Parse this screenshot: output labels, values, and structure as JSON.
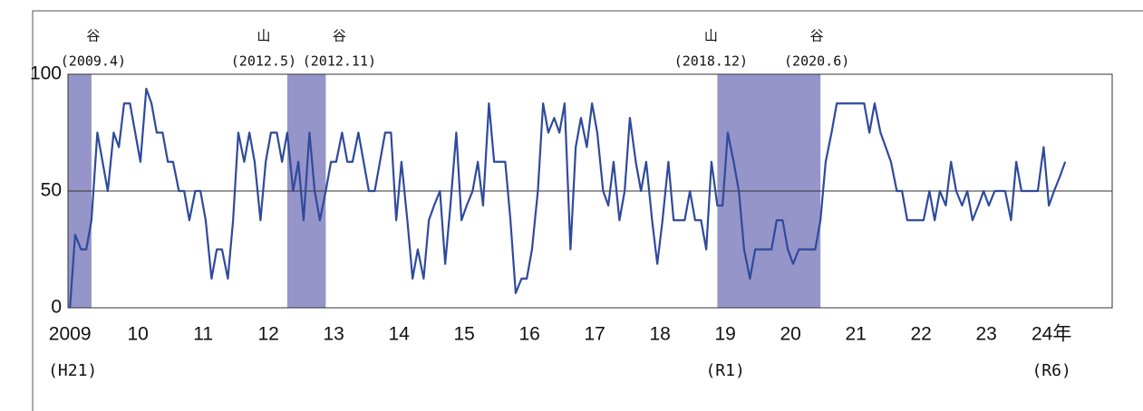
{
  "chart_data": {
    "type": "line",
    "x": [
      2009,
      2009.08,
      2009.17,
      2009.25,
      2009.33,
      2009.42,
      2009.5,
      2009.58,
      2009.67,
      2009.75,
      2009.83,
      2009.92,
      2010,
      2010.08,
      2010.17,
      2010.25,
      2010.33,
      2010.42,
      2010.5,
      2010.58,
      2010.67,
      2010.75,
      2010.83,
      2010.92,
      2011,
      2011.08,
      2011.17,
      2011.25,
      2011.33,
      2011.42,
      2011.5,
      2011.58,
      2011.67,
      2011.75,
      2011.83,
      2011.92,
      2012,
      2012.08,
      2012.17,
      2012.25,
      2012.33,
      2012.42,
      2012.5,
      2012.58,
      2012.67,
      2012.75,
      2012.83,
      2012.92,
      2013,
      2013.08,
      2013.17,
      2013.25,
      2013.33,
      2013.42,
      2013.5,
      2013.58,
      2013.67,
      2013.75,
      2013.83,
      2013.92,
      2014,
      2014.08,
      2014.17,
      2014.25,
      2014.33,
      2014.42,
      2014.5,
      2014.58,
      2014.67,
      2014.75,
      2014.83,
      2014.92,
      2015,
      2015.08,
      2015.17,
      2015.25,
      2015.33,
      2015.42,
      2015.5,
      2015.58,
      2015.67,
      2015.75,
      2015.83,
      2015.92,
      2016,
      2016.08,
      2016.17,
      2016.25,
      2016.33,
      2016.42,
      2016.5,
      2016.58,
      2016.67,
      2016.75,
      2016.83,
      2016.92,
      2017,
      2017.08,
      2017.17,
      2017.25,
      2017.33,
      2017.42,
      2017.5,
      2017.58,
      2017.67,
      2017.75,
      2017.83,
      2017.92,
      2018,
      2018.08,
      2018.17,
      2018.25,
      2018.33,
      2018.42,
      2018.5,
      2018.58,
      2018.67,
      2018.75,
      2018.83,
      2018.92,
      2019,
      2019.08,
      2019.17,
      2019.25,
      2019.33,
      2019.42,
      2019.5,
      2019.58,
      2019.67,
      2019.75,
      2019.83,
      2019.92,
      2020,
      2020.08,
      2020.17,
      2020.25,
      2020.33,
      2020.42,
      2020.5,
      2020.58,
      2020.67,
      2020.75,
      2020.83,
      2020.92,
      2021,
      2021.08,
      2021.17,
      2021.25,
      2021.33,
      2021.42,
      2021.5,
      2021.58,
      2021.67,
      2021.75,
      2021.83,
      2021.92,
      2022,
      2022.08,
      2022.17,
      2022.25,
      2022.33,
      2022.42,
      2022.5,
      2022.58,
      2022.67,
      2022.75,
      2022.83,
      2022.92,
      2023,
      2023.08,
      2023.17,
      2023.25,
      2023.33,
      2023.42,
      2023.5,
      2023.58,
      2023.67,
      2023.75,
      2023.83,
      2023.92,
      2024,
      2024.08,
      2024.17,
      2024.25
    ],
    "values": [
      0,
      31.3,
      25,
      25,
      37.5,
      75,
      62.5,
      50,
      75,
      68.8,
      87.5,
      87.5,
      75,
      62.5,
      93.8,
      87.5,
      75,
      75,
      62.5,
      62.5,
      50,
      50,
      37.5,
      50,
      50,
      37.5,
      12.5,
      25,
      25,
      12.5,
      37.5,
      75,
      62.5,
      75,
      62.5,
      37.5,
      62.5,
      75,
      75,
      62.5,
      75,
      50,
      62.5,
      37.5,
      75,
      50,
      37.5,
      50,
      62.5,
      62.5,
      75,
      62.5,
      62.5,
      75,
      62.5,
      50,
      50,
      62.5,
      75,
      75,
      37.5,
      62.5,
      37.5,
      12.5,
      25,
      12.5,
      37.5,
      43.8,
      50,
      18.8,
      43.8,
      75,
      37.5,
      43.8,
      50,
      62.5,
      43.8,
      87.5,
      62.5,
      62.5,
      62.5,
      37.5,
      6.3,
      12.5,
      12.5,
      25,
      50,
      87.5,
      75,
      81.3,
      75,
      87.5,
      25,
      68.8,
      81.3,
      68.8,
      87.5,
      75,
      50,
      43.8,
      62.5,
      37.5,
      50,
      81.3,
      62.5,
      50,
      62.5,
      37.5,
      18.8,
      37.5,
      62.5,
      37.5,
      37.5,
      37.5,
      50,
      37.5,
      37.5,
      25,
      62.5,
      43.8,
      43.8,
      75,
      62.5,
      50,
      25,
      12.5,
      25,
      25,
      25,
      25,
      37.5,
      37.5,
      25,
      18.8,
      25,
      25,
      25,
      25,
      37.5,
      62.5,
      75,
      87.5,
      87.5,
      87.5,
      87.5,
      87.5,
      87.5,
      75,
      87.5,
      75,
      68.8,
      62.5,
      50,
      50,
      37.5,
      37.5,
      37.5,
      37.5,
      50,
      37.5,
      50,
      43.8,
      62.5,
      50,
      43.8,
      50,
      37.5,
      43.8,
      50,
      43.8,
      50,
      50,
      50,
      37.5,
      62.5,
      50,
      50,
      50,
      50,
      68.8,
      43.8,
      50,
      56.3,
      62.5
    ],
    "color": "#2f4a9c",
    "xlim": [
      2008.97,
      2024.97
    ],
    "xticks": [
      2009,
      {
        "value": 2010,
        "label": "10"
      },
      {
        "value": 2011,
        "label": "11"
      },
      {
        "value": 2012,
        "label": "12"
      },
      {
        "value": 2013,
        "label": "13"
      },
      {
        "value": 2014,
        "label": "14"
      },
      {
        "value": 2015,
        "label": "15"
      },
      {
        "value": 2016,
        "label": "16"
      },
      {
        "value": 2017,
        "label": "17"
      },
      {
        "value": 2018,
        "label": "18"
      },
      {
        "value": 2019,
        "label": "19"
      },
      {
        "value": 2020,
        "label": "20"
      },
      {
        "value": 2021,
        "label": "21"
      },
      {
        "value": 2022,
        "label": "22"
      },
      {
        "value": 2023,
        "label": "23"
      },
      {
        "value": 2024,
        "label": "24年"
      }
    ],
    "ylim": [
      0,
      100
    ],
    "yticks": [
      0,
      50,
      100
    ],
    "grid": true,
    "era_labels": [
      {
        "x": 2009,
        "label": "(H21)"
      },
      {
        "x": 2019,
        "label": "(R1)"
      },
      {
        "x": 2024,
        "label": "(R6)"
      }
    ],
    "shaded": {
      "color": "#9595c9",
      "ranges": [
        [
          2008.97,
          2009.33
        ],
        [
          2012.33,
          2012.92
        ],
        [
          2018.92,
          2020.5
        ]
      ]
    },
    "turning_points": [
      {
        "kind": "谷",
        "label": "(2009.4)",
        "x": 2009.33
      },
      {
        "kind": "山",
        "label": "(2012.5)",
        "x": 2012.33
      },
      {
        "kind": "谷",
        "label": "(2012.11)",
        "x": 2012.92
      },
      {
        "kind": "山",
        "label": "(2018.12)",
        "x": 2018.92
      },
      {
        "kind": "谷",
        "label": "(2020.6)",
        "x": 2020.5
      }
    ]
  }
}
